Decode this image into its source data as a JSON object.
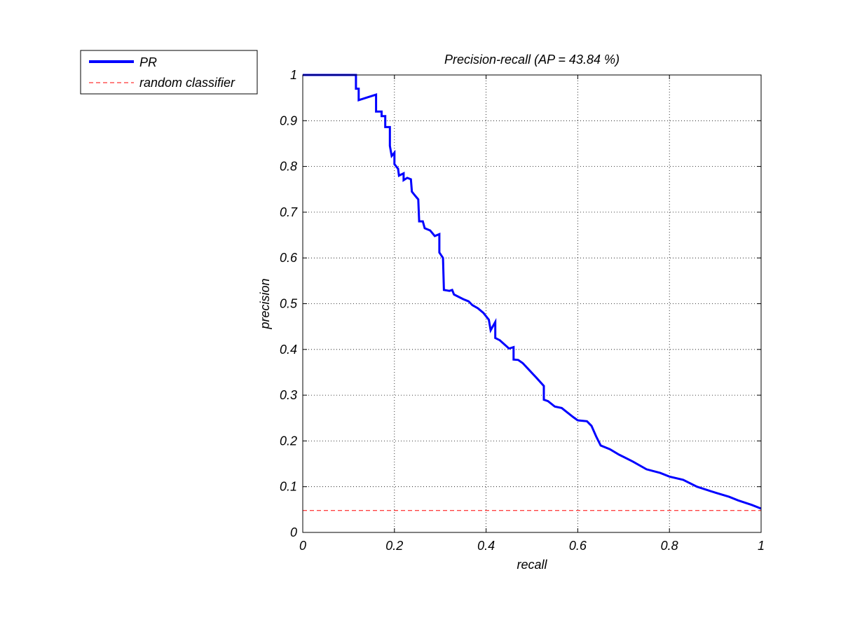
{
  "chart_data": {
    "type": "line",
    "title": "Precision-recall (AP = 43.84 %)",
    "xlabel": "recall",
    "ylabel": "precision",
    "xlim": [
      0,
      1
    ],
    "ylim": [
      0,
      1
    ],
    "x_ticks": [
      0,
      0.2,
      0.4,
      0.6,
      0.8,
      1
    ],
    "y_ticks": [
      0,
      0.1,
      0.2,
      0.3,
      0.4,
      0.5,
      0.6,
      0.7,
      0.8,
      0.9,
      1
    ],
    "x_tick_labels": [
      "0",
      "0.2",
      "0.4",
      "0.6",
      "0.8",
      "1"
    ],
    "y_tick_labels": [
      "0",
      "0.1",
      "0.2",
      "0.3",
      "0.4",
      "0.5",
      "0.6",
      "0.7",
      "0.8",
      "0.9",
      "1"
    ],
    "grid": true,
    "legend_position": "outside-top-left",
    "series": [
      {
        "name": "PR",
        "color": "#0000ff",
        "style": "solid",
        "points": [
          [
            0,
            1
          ],
          [
            0.116,
            1
          ],
          [
            0.116,
            0.97
          ],
          [
            0.122,
            0.97
          ],
          [
            0.122,
            0.945
          ],
          [
            0.16,
            0.957
          ],
          [
            0.16,
            0.92
          ],
          [
            0.172,
            0.92
          ],
          [
            0.172,
            0.91
          ],
          [
            0.18,
            0.91
          ],
          [
            0.18,
            0.886
          ],
          [
            0.19,
            0.886
          ],
          [
            0.19,
            0.845
          ],
          [
            0.194,
            0.823
          ],
          [
            0.2,
            0.83
          ],
          [
            0.2,
            0.805
          ],
          [
            0.208,
            0.795
          ],
          [
            0.21,
            0.78
          ],
          [
            0.22,
            0.785
          ],
          [
            0.22,
            0.77
          ],
          [
            0.228,
            0.775
          ],
          [
            0.236,
            0.772
          ],
          [
            0.238,
            0.745
          ],
          [
            0.246,
            0.735
          ],
          [
            0.252,
            0.728
          ],
          [
            0.254,
            0.68
          ],
          [
            0.262,
            0.68
          ],
          [
            0.266,
            0.665
          ],
          [
            0.278,
            0.66
          ],
          [
            0.288,
            0.648
          ],
          [
            0.298,
            0.652
          ],
          [
            0.298,
            0.612
          ],
          [
            0.306,
            0.6
          ],
          [
            0.308,
            0.53
          ],
          [
            0.32,
            0.528
          ],
          [
            0.326,
            0.53
          ],
          [
            0.33,
            0.52
          ],
          [
            0.35,
            0.51
          ],
          [
            0.362,
            0.505
          ],
          [
            0.37,
            0.497
          ],
          [
            0.382,
            0.49
          ],
          [
            0.394,
            0.48
          ],
          [
            0.406,
            0.465
          ],
          [
            0.41,
            0.442
          ],
          [
            0.42,
            0.46
          ],
          [
            0.42,
            0.425
          ],
          [
            0.43,
            0.42
          ],
          [
            0.45,
            0.402
          ],
          [
            0.46,
            0.405
          ],
          [
            0.46,
            0.378
          ],
          [
            0.47,
            0.377
          ],
          [
            0.48,
            0.37
          ],
          [
            0.494,
            0.355
          ],
          [
            0.51,
            0.338
          ],
          [
            0.526,
            0.32
          ],
          [
            0.526,
            0.29
          ],
          [
            0.535,
            0.287
          ],
          [
            0.55,
            0.275
          ],
          [
            0.565,
            0.272
          ],
          [
            0.58,
            0.26
          ],
          [
            0.59,
            0.252
          ],
          [
            0.6,
            0.245
          ],
          [
            0.62,
            0.243
          ],
          [
            0.63,
            0.233
          ],
          [
            0.64,
            0.21
          ],
          [
            0.65,
            0.19
          ],
          [
            0.67,
            0.182
          ],
          [
            0.69,
            0.17
          ],
          [
            0.72,
            0.155
          ],
          [
            0.75,
            0.138
          ],
          [
            0.78,
            0.13
          ],
          [
            0.8,
            0.122
          ],
          [
            0.83,
            0.115
          ],
          [
            0.86,
            0.1
          ],
          [
            0.9,
            0.087
          ],
          [
            0.93,
            0.078
          ],
          [
            0.95,
            0.07
          ],
          [
            0.98,
            0.06
          ],
          [
            1,
            0.052
          ]
        ]
      },
      {
        "name": "random classifier",
        "color": "#ff0000",
        "style": "dashed",
        "points": [
          [
            0,
            0.048
          ],
          [
            1,
            0.048
          ]
        ]
      }
    ]
  }
}
